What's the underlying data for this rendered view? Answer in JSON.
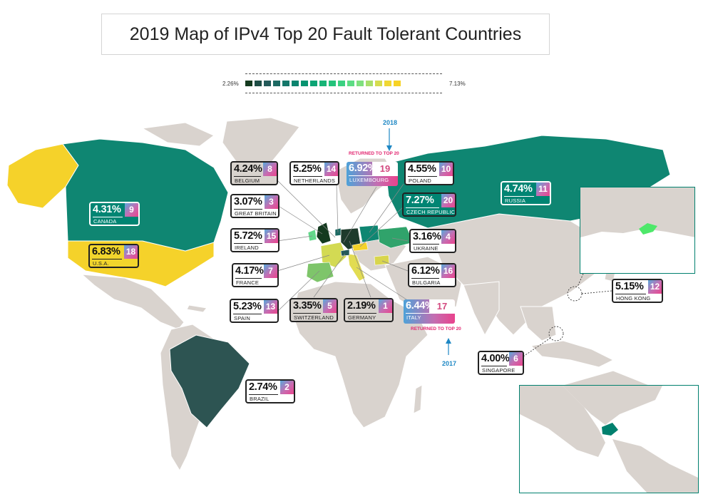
{
  "title": "2019 Map of IPv4 Top 20 Fault Tolerant Countries",
  "legend": {
    "min_label": "2.26%",
    "max_label": "7.13%",
    "colors": [
      "#143a1f",
      "#1e4d45",
      "#245a5a",
      "#1d6a63",
      "#14776a",
      "#0c846f",
      "#079470",
      "#0ca474",
      "#17b476",
      "#24c37b",
      "#3ad181",
      "#5cdc83",
      "#7fe07e",
      "#a9df6c",
      "#d5dc4f",
      "#f0d733",
      "#f7d224"
    ]
  },
  "annotations": {
    "luxembourg_note": "RETURNED TO TOP 20",
    "italy_note": "RETURNED TO TOP 20",
    "year_2018": "2018",
    "year_2017": "2017"
  },
  "countries": [
    {
      "name": "CANADA",
      "pct": "4.31%",
      "rank": "9",
      "style": "green"
    },
    {
      "name": "U.S.A.",
      "pct": "6.83%",
      "rank": "18",
      "style": "yellow"
    },
    {
      "name": "BRAZIL",
      "pct": "2.74%",
      "rank": "2",
      "style": "white"
    },
    {
      "name": "BELGIUM",
      "pct": "4.24%",
      "rank": "8",
      "style": "beige"
    },
    {
      "name": "NETHERLANDS",
      "pct": "5.25%",
      "rank": "14",
      "style": "white"
    },
    {
      "name": "LUXEMBOURG",
      "pct": "6.92%",
      "rank": "19",
      "style": "returned"
    },
    {
      "name": "POLAND",
      "pct": "4.55%",
      "rank": "10",
      "style": "white"
    },
    {
      "name": "CZECH REPUBLIC",
      "pct": "7.27%",
      "rank": "20",
      "style": "green"
    },
    {
      "name": "GREAT BRITAIN",
      "pct": "3.07%",
      "rank": "3",
      "style": "white"
    },
    {
      "name": "IRELAND",
      "pct": "5.72%",
      "rank": "15",
      "style": "white"
    },
    {
      "name": "FRANCE",
      "pct": "4.17%",
      "rank": "7",
      "style": "white"
    },
    {
      "name": "SPAIN",
      "pct": "5.23%",
      "rank": "13",
      "style": "white"
    },
    {
      "name": "SWITZERLAND",
      "pct": "3.35%",
      "rank": "5",
      "style": "beige"
    },
    {
      "name": "GERMANY",
      "pct": "2.19%",
      "rank": "1",
      "style": "beige"
    },
    {
      "name": "ITALY",
      "pct": "6.44%",
      "rank": "17",
      "style": "returned"
    },
    {
      "name": "UKRAINE",
      "pct": "3.16%",
      "rank": "4",
      "style": "white"
    },
    {
      "name": "BULGARIA",
      "pct": "6.12%",
      "rank": "16",
      "style": "white"
    },
    {
      "name": "RUSSIA",
      "pct": "4.74%",
      "rank": "11",
      "style": "green"
    },
    {
      "name": "HONG KONG",
      "pct": "5.15%",
      "rank": "12",
      "style": "white"
    },
    {
      "name": "SINGAPORE",
      "pct": "4.00%",
      "rank": "6",
      "style": "white"
    }
  ]
}
